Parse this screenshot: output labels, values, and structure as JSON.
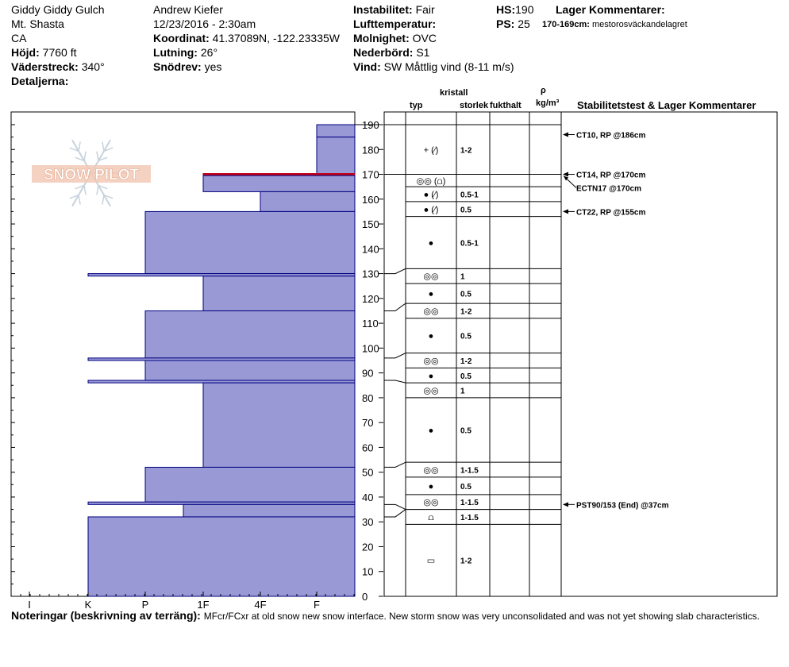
{
  "header": {
    "location_name": "Giddy Giddy Gulch",
    "region": "Mt. Shasta",
    "state": "CA",
    "observer": "Andrew Kiefer",
    "datetime": "12/23/2016 - 2:30am",
    "labels": {
      "elevation": "Höjd:",
      "aspect": "Väderstreck:",
      "details": "Detaljerna:",
      "coords": "Koordinat:",
      "slope": "Lutning:",
      "wind_loading": "Snödrev:",
      "stability": "Instabilitet:",
      "air_temp": "Lufttemperatur:",
      "sky": "Molnighet:",
      "precip": "Nederbörd:",
      "wind": "Vind:",
      "hs": "HS:",
      "ps": "PS:",
      "layer_comments": "Lager Kommentarer:"
    },
    "elevation": "7760 ft",
    "aspect": "340°",
    "coords": "41.37089N, -122.23335W",
    "slope": "26°",
    "wind_loading": "yes",
    "stability": "Fair",
    "air_temp": "",
    "sky": "OVC",
    "precip": "S1",
    "wind": "SW  Måttlig vind (8-11 m/s)",
    "hs": "190",
    "ps": "25",
    "layer_comment_range": "170-169cm:",
    "layer_comment_text": "mestorosväckandelagret"
  },
  "columns": {
    "crystal": "kristall",
    "type": "typ",
    "size": "storlek",
    "moisture": "fukthalt",
    "rho": "ρ",
    "density_unit": "kg/m³",
    "stability_title": "Stabilitetstest & Lager Kommentarer"
  },
  "logo_text": "SNOW PILOT",
  "notes": {
    "label": "Noteringar (beskrivning av terräng):",
    "text": "MFcr/FCxr at old snow new snow interface. New storm snow was very unconsolidated and was not yet showing slab characteristics."
  },
  "colors": {
    "bar_fill": "#9999d6",
    "bar_stroke": "#000080",
    "crust": "#c0001a",
    "grid": "#000000"
  },
  "chart_data": {
    "type": "bar",
    "orientation": "horizontal",
    "title": "",
    "xlabel": "",
    "ylabel": "",
    "hardness_categories": [
      "I",
      "K",
      "P",
      "1F",
      "4F",
      "F"
    ],
    "ylim": [
      0,
      190
    ],
    "yticks": [
      0,
      10,
      20,
      30,
      40,
      50,
      60,
      70,
      80,
      90,
      100,
      110,
      120,
      130,
      140,
      150,
      160,
      170,
      180,
      190
    ],
    "hardness_layers": [
      {
        "bottom": 185,
        "top": 190,
        "hardness": "4F-"
      },
      {
        "bottom": 170,
        "top": 185,
        "hardness": "F+"
      },
      {
        "bottom": 169.5,
        "top": 170,
        "hardness": "1F",
        "crust": true
      },
      {
        "bottom": 163,
        "top": 169.5,
        "hardness": "1F"
      },
      {
        "bottom": 155,
        "top": 163,
        "hardness": "4F"
      },
      {
        "bottom": 130,
        "top": 155,
        "hardness": "P"
      },
      {
        "bottom": 129,
        "top": 130,
        "hardness": "K"
      },
      {
        "bottom": 115,
        "top": 129,
        "hardness": "1F"
      },
      {
        "bottom": 96,
        "top": 115,
        "hardness": "P"
      },
      {
        "bottom": 95,
        "top": 96,
        "hardness": "K"
      },
      {
        "bottom": 87,
        "top": 95,
        "hardness": "P"
      },
      {
        "bottom": 86,
        "top": 87,
        "hardness": "K"
      },
      {
        "bottom": 52,
        "top": 86,
        "hardness": "1F"
      },
      {
        "bottom": 38,
        "top": 52,
        "hardness": "P"
      },
      {
        "bottom": 37,
        "top": 38,
        "hardness": "K"
      },
      {
        "bottom": 32,
        "top": 37,
        "hardness": "1F-"
      },
      {
        "bottom": 0,
        "top": 32,
        "hardness": "K"
      }
    ],
    "strat_layers": [
      {
        "top": 190,
        "bottom": 170,
        "form": "+ (⁄)",
        "size": "1-2"
      },
      {
        "top": 170,
        "bottom": 165,
        "form": "◎◎ (⩍)",
        "size": ""
      },
      {
        "top": 165,
        "bottom": 159,
        "form": "● (⁄)",
        "size": "0.5-1"
      },
      {
        "top": 159,
        "bottom": 153,
        "form": "● (⁄)",
        "size": "0.5"
      },
      {
        "top": 153,
        "bottom": 132,
        "form": "●",
        "size": "0.5-1"
      },
      {
        "top": 132,
        "bottom": 126,
        "form": "◎◎",
        "size": "1"
      },
      {
        "top": 126,
        "bottom": 118,
        "form": "●",
        "size": "0.5"
      },
      {
        "top": 118,
        "bottom": 112,
        "form": "◎◎",
        "size": "1-2"
      },
      {
        "top": 112,
        "bottom": 98,
        "form": "●",
        "size": "0.5"
      },
      {
        "top": 98,
        "bottom": 92,
        "form": "◎◎",
        "size": "1-2"
      },
      {
        "top": 92,
        "bottom": 86,
        "form": "●",
        "size": "0.5"
      },
      {
        "top": 86,
        "bottom": 80,
        "form": "◎◎",
        "size": "1"
      },
      {
        "top": 80,
        "bottom": 54,
        "form": "●",
        "size": "0.5"
      },
      {
        "top": 54,
        "bottom": 48,
        "form": "◎◎",
        "size": "1-1.5"
      },
      {
        "top": 48,
        "bottom": 41,
        "form": "●",
        "size": "0.5"
      },
      {
        "top": 41,
        "bottom": 35,
        "form": "◎◎",
        "size": "1-1.5"
      },
      {
        "top": 35,
        "bottom": 29,
        "form": "⩍",
        "size": "1-1.5"
      },
      {
        "top": 29,
        "bottom": 0,
        "form": "▭",
        "size": "1-2"
      }
    ],
    "boundaries": [
      190,
      170,
      130,
      115,
      96,
      87,
      52,
      37,
      32
    ],
    "stability_tests": [
      {
        "label": "CT10, RP @186cm",
        "depth": 186,
        "arrow": true
      },
      {
        "label": "CT14, RP @170cm",
        "depth": 170,
        "arrow": true
      },
      {
        "label": "ECTN17 @170cm",
        "depth": 170,
        "arrow": true,
        "secondary": true
      },
      {
        "label": "CT22, RP @155cm",
        "depth": 155,
        "arrow": true
      },
      {
        "label": "PST90/153 (End) @37cm",
        "depth": 37,
        "arrow": true
      }
    ]
  }
}
